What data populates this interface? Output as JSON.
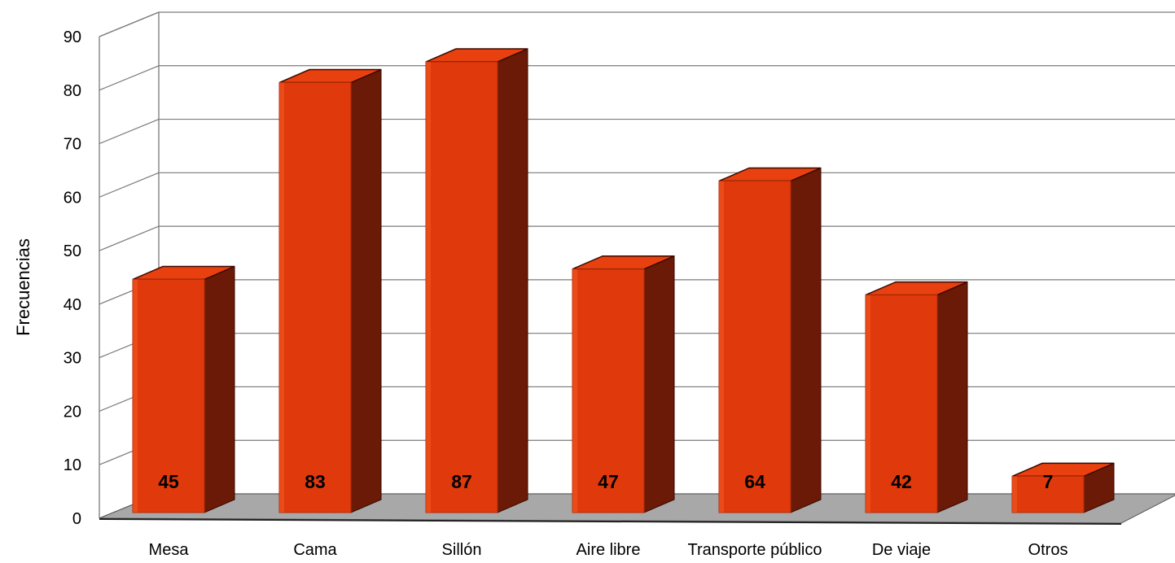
{
  "chart_data": {
    "type": "bar",
    "style": "3d-column",
    "categories": [
      "Mesa",
      "Cama",
      "Sillón",
      "Aire libre",
      "Transporte público",
      "De viaje",
      "Otros"
    ],
    "values": [
      45,
      83,
      87,
      47,
      64,
      42,
      7
    ],
    "data_labels": [
      "45",
      "83",
      "87",
      "47",
      "64",
      "42",
      "7"
    ],
    "ylabel": "Frecuencias",
    "xlabel": "",
    "ylim": [
      0,
      90
    ],
    "yticks": [
      "0",
      "10",
      "20",
      "30",
      "40",
      "50",
      "60",
      "70",
      "80",
      "90"
    ],
    "grid": true,
    "legend": "none"
  },
  "colors": {
    "bar_front": "#e03a0c",
    "bar_side": "#6a1a06",
    "bar_top": "#e8410f",
    "bar_outline": "#3a0a00",
    "floor": "#a8a8a8",
    "grid": "#7a7a7a"
  }
}
